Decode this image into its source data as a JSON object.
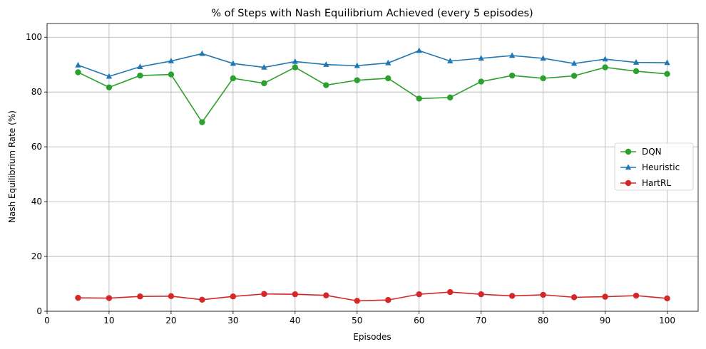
{
  "chart_data": {
    "type": "line",
    "title": "% of Steps with Nash Equilibrium Achieved (every 5 episodes)",
    "xlabel": "Episodes",
    "ylabel": "Nash Equilibrium Rate (%)",
    "xlim": [
      0,
      105
    ],
    "ylim": [
      0,
      105
    ],
    "xticks": [
      0,
      10,
      20,
      30,
      40,
      50,
      60,
      70,
      80,
      90,
      100
    ],
    "yticks": [
      0,
      20,
      40,
      60,
      80,
      100
    ],
    "grid": true,
    "legend_position": "center-right",
    "x": [
      5,
      10,
      15,
      20,
      25,
      30,
      35,
      40,
      45,
      50,
      55,
      60,
      65,
      70,
      75,
      80,
      85,
      90,
      95,
      100
    ],
    "series": [
      {
        "name": "DQN",
        "color": "#2ca02c",
        "marker": "circle",
        "values": [
          87.2,
          81.7,
          86.0,
          86.4,
          69.0,
          85.0,
          83.2,
          89.0,
          82.5,
          84.3,
          85.0,
          77.6,
          78.0,
          83.8,
          86.0,
          85.0,
          85.9,
          89.0,
          87.6,
          86.6
        ]
      },
      {
        "name": "Heuristic",
        "color": "#1f77b4",
        "marker": "triangle",
        "values": [
          89.8,
          85.7,
          89.2,
          91.3,
          94.0,
          90.4,
          89.0,
          91.1,
          90.0,
          89.6,
          90.6,
          95.1,
          91.3,
          92.3,
          93.3,
          92.3,
          90.4,
          92.0,
          90.8,
          90.7
        ]
      },
      {
        "name": "HartRL",
        "color": "#d62728",
        "marker": "circle",
        "values": [
          4.9,
          4.8,
          5.4,
          5.5,
          4.2,
          5.4,
          6.3,
          6.2,
          5.8,
          3.8,
          4.1,
          6.2,
          7.0,
          6.2,
          5.6,
          6.0,
          5.1,
          5.3,
          5.7,
          4.7
        ]
      }
    ]
  }
}
